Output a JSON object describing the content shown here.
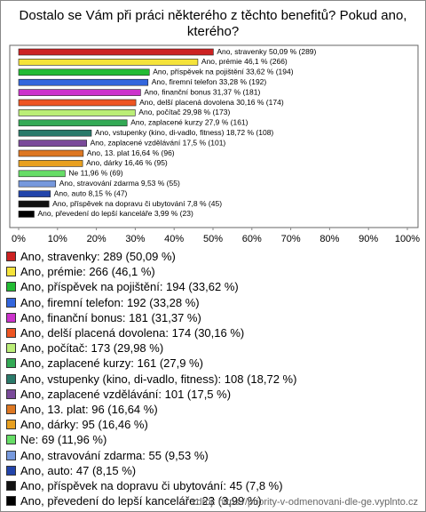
{
  "chart_data": {
    "type": "hbar",
    "title": "Dostalo se Vám při práci některého z těchto benefitů? Pokud ano, kterého?",
    "values": [
      50.09,
      46.1,
      33.62,
      33.28,
      31.37,
      30.16,
      29.98,
      27.9,
      18.72,
      17.5,
      16.64,
      16.46,
      11.96,
      9.53,
      8.15,
      7.8,
      3.99
    ],
    "value_labels": [
      "Ano, stravenky 50,09 % (289)",
      "Ano, prémie 46,1 % (266)",
      "Ano, příspěvek na pojištění 33,62 % (194)",
      "Ano, firemní telefon 33,28 % (192)",
      "Ano, finanční bonus 31,37 % (181)",
      "Ano, delší placená dovolena 30,16 % (174)",
      "Ano, počítač 29,98 % (173)",
      "Ano, zaplacené kurzy 27,9 % (161)",
      "Ano, vstupenky (kino, di-vadlo, fitness) 18,72 % (108)",
      "Ano, zaplacené vzdělávání 17,5 % (101)",
      "Ano, 13. plat 16,64 % (96)",
      "Ano, dárky 16,46 % (95)",
      "Ne 11,96 % (69)",
      "Ano, stravování zdarma 9,53 % (55)",
      "Ano, auto 8,15 % (47)",
      "Ano, příspěvek na dopravu či ubytování 7,8 % (45)",
      "Ano, převedení do lepší kanceláře 3,99 % (23)"
    ],
    "legend_labels": [
      "Ano, stravenky: 289 (50,09 %)",
      "Ano, prémie: 266 (46,1 %)",
      "Ano, příspěvek na pojištění: 194 (33,62 %)",
      "Ano, firemní telefon: 192 (33,28 %)",
      "Ano, finanční bonus: 181 (31,37 %)",
      "Ano, delší placená dovolena: 174 (30,16 %)",
      "Ano, počítač: 173 (29,98 %)",
      "Ano, zaplacené kurzy: 161 (27,9 %)",
      "Ano, vstupenky (kino, di-vadlo, fitness): 108 (18,72 %)",
      "Ano, zaplacené vzdělávání: 101 (17,5 %)",
      "Ano, 13. plat: 96 (16,64 %)",
      "Ano, dárky: 95 (16,46 %)",
      "Ne: 69 (11,96 %)",
      "Ano, stravování zdarma: 55 (9,53 %)",
      "Ano, auto: 47 (8,15 %)",
      "Ano, příspěvek na dopravu či ubytování: 45 (7,8 %)",
      "Ano, převedení do lepší kanceláře: 23 (3,99 %)"
    ],
    "colors": [
      "#cc2222",
      "#f5e33a",
      "#22bb33",
      "#3366dd",
      "#cc33cc",
      "#ee5522",
      "#bbee77",
      "#33aa55",
      "#2a7a6a",
      "#7a4a9a",
      "#dd7722",
      "#e8a020",
      "#66dd66",
      "#7799dd",
      "#2244aa",
      "#111111",
      "#000000"
    ],
    "xlim": [
      0,
      100
    ],
    "xticks": [
      {
        "value": 0,
        "label": "0%"
      },
      {
        "value": 10,
        "label": "10%"
      },
      {
        "value": 20,
        "label": "20%"
      },
      {
        "value": 30,
        "label": "30%"
      },
      {
        "value": 40,
        "label": "40%"
      },
      {
        "value": 50,
        "label": "50%"
      },
      {
        "value": 60,
        "label": "60%"
      },
      {
        "value": 70,
        "label": "70%"
      },
      {
        "value": 80,
        "label": "80%"
      },
      {
        "value": 90,
        "label": "90%"
      },
      {
        "value": 100,
        "label": "100%"
      }
    ],
    "source": "zdroj: https://priority-v-odmenovani-dle-ge.vyplnto.cz"
  }
}
